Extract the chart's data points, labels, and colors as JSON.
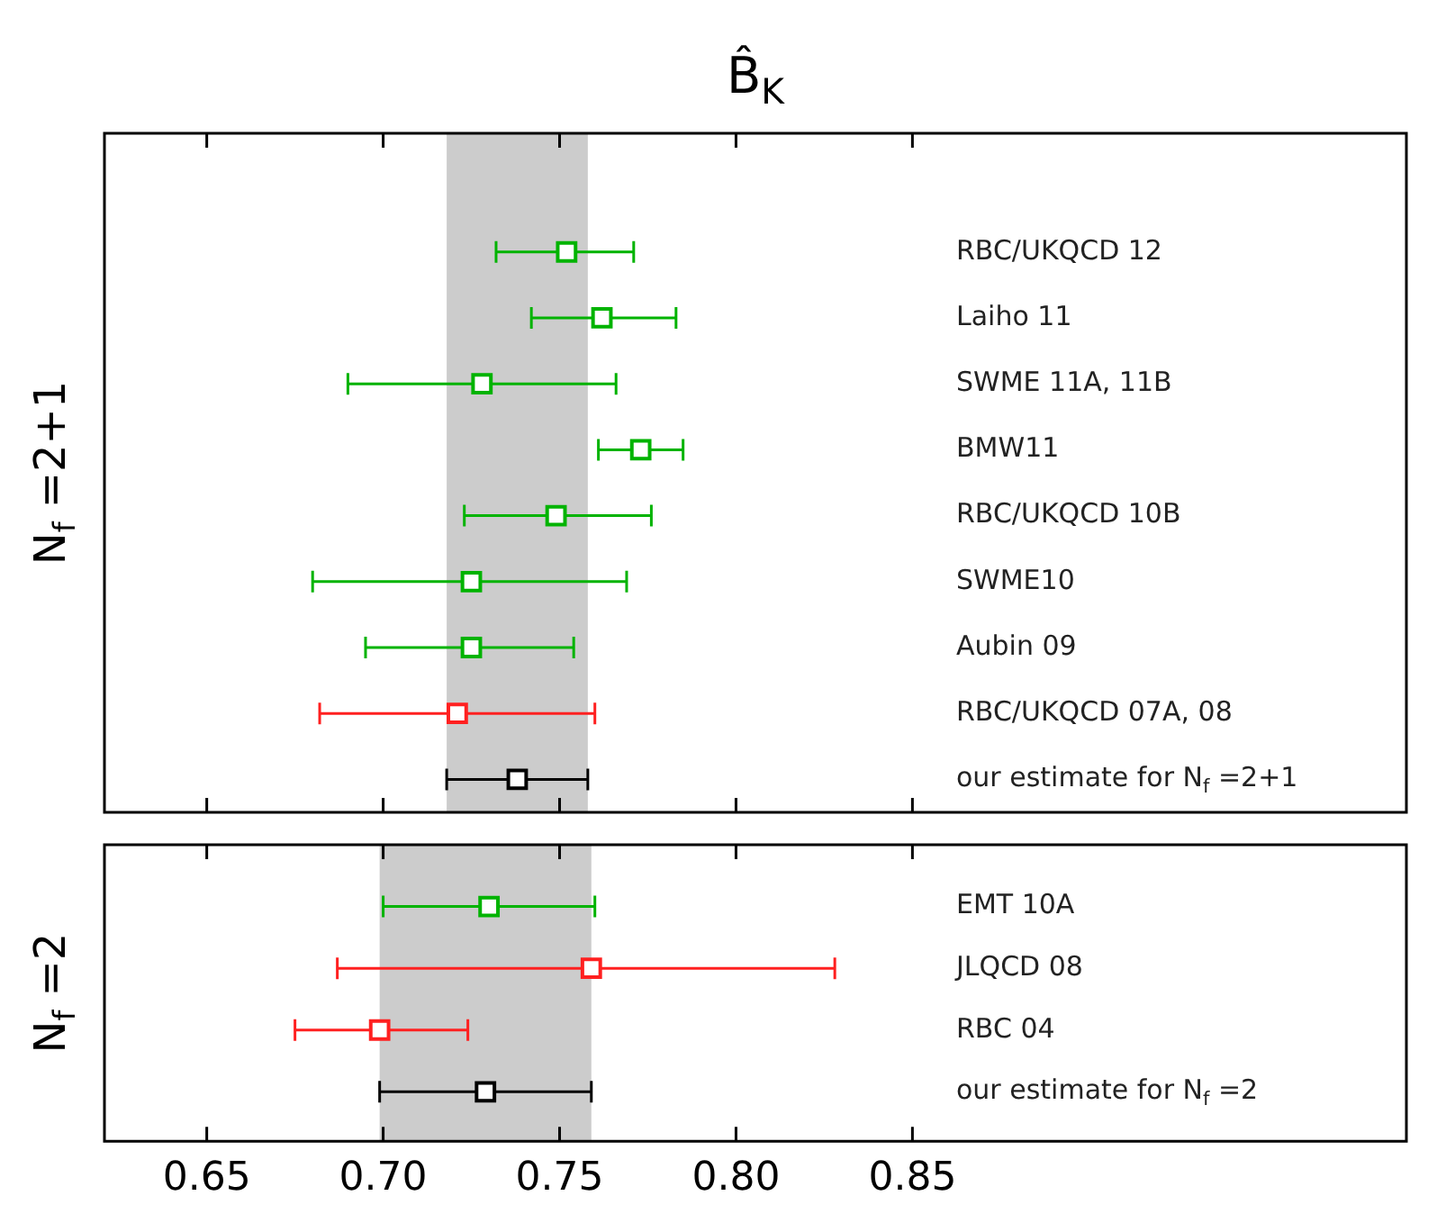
{
  "chart_data": [
    {
      "type": "scatter",
      "orientation": "horizontal",
      "title": "B̂$_{K}$",
      "ylabel": "N$_{f}$ =2+1",
      "tick_labels": "y",
      "categories": [
        "RBC/UKQCD 12",
        "Laiho 11",
        "SWME 11A, 11B",
        "BMW11",
        "RBC/UKQCD 10B",
        "SWME10",
        "Aubin 09",
        "RBC/UKQCD 07A, 08",
        "our estimate for N$_{f}$ =2+1"
      ],
      "xlim": [
        0.621,
        0.99
      ],
      "xticks": [
        {
          "value": 0.65,
          "label": null
        },
        {
          "value": 0.7,
          "label": null
        },
        {
          "value": 0.75,
          "label": null
        },
        {
          "value": 0.8,
          "label": null
        },
        {
          "value": 0.85,
          "label": null
        }
      ],
      "bands": [
        {
          "axis": "x",
          "from": 0.718,
          "to": 0.758,
          "color": "#cccccc"
        }
      ],
      "series": [
        {
          "marker": "square",
          "colors": [
            "#00b300",
            "#00b300",
            "#00b300",
            "#00b300",
            "#00b300",
            "#00b300",
            "#00b300",
            "#ff2020",
            "#000000"
          ],
          "values": [
            0.752,
            0.762,
            0.728,
            0.773,
            0.749,
            0.725,
            0.725,
            0.721,
            0.738
          ],
          "errors": [
            [
              0.732,
              0.771
            ],
            [
              0.742,
              0.783
            ],
            [
              0.69,
              0.766
            ],
            [
              0.761,
              0.785
            ],
            [
              0.723,
              0.776
            ],
            [
              0.68,
              0.769
            ],
            [
              0.695,
              0.754
            ],
            [
              0.682,
              0.76
            ],
            [
              0.718,
              0.758
            ]
          ]
        }
      ]
    },
    {
      "type": "scatter",
      "orientation": "horizontal",
      "ylabel": "N$_{f}$ =2",
      "categories": [
        "EMT 10A",
        "JLQCD 08",
        "RBC 04",
        "our estimate for N$_{f}$ =2"
      ],
      "xlim": [
        0.621,
        0.99
      ],
      "xticks": [
        0.65,
        {
          "value": 0.7,
          "label": "0.70"
        },
        0.75,
        {
          "value": 0.8,
          "label": "0.80"
        },
        0.85
      ],
      "bands": [
        {
          "axis": "x",
          "from": 0.699,
          "to": 0.759,
          "color": "#cccccc"
        }
      ],
      "series": [
        {
          "marker": "square",
          "colors": [
            "#00b300",
            "#ff2020",
            "#ff2020",
            "#000000"
          ],
          "values": [
            0.73,
            0.759,
            0.699,
            0.729
          ],
          "errors": [
            [
              0.7,
              0.76
            ],
            [
              0.687,
              0.828
            ],
            [
              0.675,
              0.724
            ],
            [
              0.699,
              0.759
            ]
          ]
        }
      ]
    }
  ]
}
